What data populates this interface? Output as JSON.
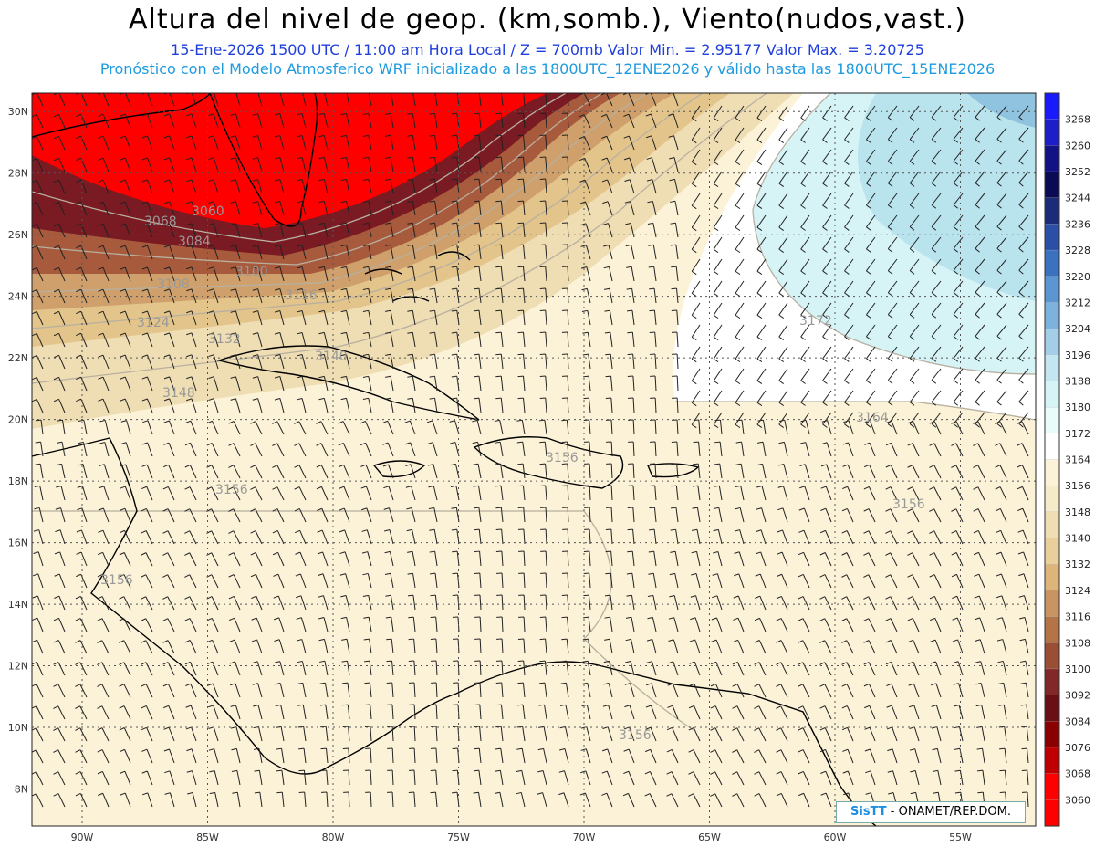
{
  "header": {
    "title": "Altura del nivel de geop. (km,somb.), Viento(nudos,vast.)",
    "valid_line": "15-Ene-2026  1500 UTC / 11:00 am Hora Local / Z = 700mb   Valor Min. = 2.95177  Valor Max. = 3.20725",
    "model_line": "Pronóstico con el Modelo Atmosferico WRF inicializado a las 1800UTC_12ENE2026 y válido hasta las  1800UTC_15ENE2026"
  },
  "map": {
    "lon_range": [
      -92,
      -52
    ],
    "lat_range": [
      6.8,
      30.6
    ],
    "lon_ticks": [
      "90W",
      "85W",
      "80W",
      "75W",
      "70W",
      "65W",
      "60W",
      "55W"
    ],
    "lat_ticks": [
      "30N",
      "28N",
      "26N",
      "24N",
      "22N",
      "20N",
      "18N",
      "16N",
      "14N",
      "12N",
      "10N",
      "8N"
    ],
    "contour_labels": [
      "3060",
      "3068",
      "3084",
      "3100",
      "3108",
      "3116",
      "3124",
      "3132",
      "3140",
      "3148",
      "3156",
      "3156",
      "3156",
      "3156",
      "3156",
      "3164",
      "3172"
    ]
  },
  "legend": {
    "levels": [
      "3268",
      "3260",
      "3252",
      "3244",
      "3236",
      "3228",
      "3220",
      "3212",
      "3204",
      "3196",
      "3188",
      "3180",
      "3172",
      "3164",
      "3156",
      "3148",
      "3140",
      "3132",
      "3124",
      "3116",
      "3108",
      "3100",
      "3092",
      "3084",
      "3076",
      "3068",
      "3060"
    ],
    "colors": [
      "#1a1aff",
      "#1e1ec8",
      "#121285",
      "#0b0b55",
      "#1c2a7a",
      "#2b4ea6",
      "#3a72c0",
      "#5b96d2",
      "#7db2de",
      "#a4cde8",
      "#c3e6f0",
      "#d6f3f6",
      "#e9fbfb",
      "#ffffff",
      "#fbf2d7",
      "#f6ebc9",
      "#efddb3",
      "#e9cf9c",
      "#ddb57a",
      "#c99462",
      "#b47448",
      "#9a4e34",
      "#83282a",
      "#6b0f17",
      "#8a0000",
      "#c00000",
      "#ff0000"
    ]
  },
  "credit": {
    "brand": "SisTT",
    "org": " - ONAMET/REP.DOM."
  }
}
